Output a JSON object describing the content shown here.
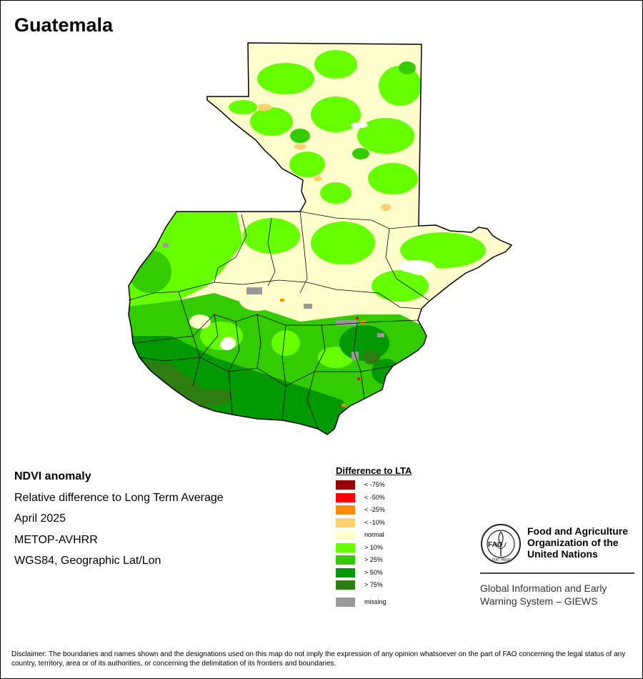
{
  "map_title": "Guatemala",
  "info_lines": [
    "NDVI anomaly",
    "Relative difference to Long Term Average",
    "April 2025",
    "METOP-AVHRR",
    "WGS84, Geographic Lat/Lon"
  ],
  "legend": {
    "title": "Difference to LTA",
    "items": [
      {
        "label": "< -75%",
        "color": "#990000"
      },
      {
        "label": "< -50%",
        "color": "#ff0000"
      },
      {
        "label": "< -25%",
        "color": "#ff8c00"
      },
      {
        "label": "< -10%",
        "color": "#ffd070"
      },
      {
        "label": "normal",
        "color": "#ffffcc"
      },
      {
        "label": "> 10%",
        "color": "#66ff00"
      },
      {
        "label": "> 25%",
        "color": "#33cc00"
      },
      {
        "label": "> 50%",
        "color": "#009900"
      },
      {
        "label": "> 75%",
        "color": "#2e7d10"
      }
    ],
    "missing": {
      "label": "missing",
      "color": "#999999"
    }
  },
  "logo": {
    "org_name": [
      "Food and Agriculture",
      "Organization of the",
      "United Nations"
    ],
    "emblem_text": "FAO",
    "motto": "FIAT PANIS",
    "system_name": [
      "Global Information and Early",
      "Warning System – GIEWS"
    ]
  },
  "disclaimer": "Disclaimer: The boundaries and names shown and the designations used on this map do not imply the expression of any opinion whatsoever on the part of FAO concerning the legal status of any country, territory, area or of its authorities, or concerning the delimitation of its frontiers and boundaries."
}
